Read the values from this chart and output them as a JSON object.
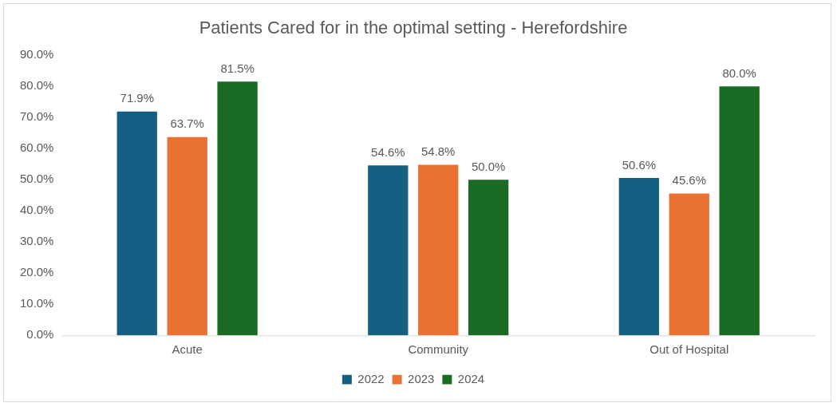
{
  "chart_data": {
    "type": "bar",
    "title": "Patients Cared for in the optimal setting - Herefordshire",
    "categories": [
      "Acute",
      "Community",
      "Out of Hospital"
    ],
    "series": [
      {
        "name": "2022",
        "color": "#156082",
        "values": [
          71.9,
          54.6,
          50.6
        ],
        "value_labels": [
          "71.9%",
          "54.6%",
          "50.6%"
        ]
      },
      {
        "name": "2023",
        "color": "#e97132",
        "values": [
          63.7,
          54.8,
          45.6
        ],
        "value_labels": [
          "63.7%",
          "54.8%",
          "45.6%"
        ]
      },
      {
        "name": "2024",
        "color": "#196b24",
        "values": [
          81.5,
          50.0,
          80.0
        ],
        "value_labels": [
          "81.5%",
          "50.0%",
          "80.0%"
        ]
      }
    ],
    "ylim": [
      0,
      90
    ],
    "yticks": [
      {
        "value": 0,
        "label": "0.0%"
      },
      {
        "value": 10,
        "label": "10.0%"
      },
      {
        "value": 20,
        "label": "20.0%"
      },
      {
        "value": 30,
        "label": "30.0%"
      },
      {
        "value": 40,
        "label": "40.0%"
      },
      {
        "value": 50,
        "label": "50.0%"
      },
      {
        "value": 60,
        "label": "60.0%"
      },
      {
        "value": 70,
        "label": "70.0%"
      },
      {
        "value": 80,
        "label": "80.0%"
      },
      {
        "value": 90,
        "label": "90.0%"
      }
    ],
    "grid": false,
    "legend": "bottom"
  }
}
